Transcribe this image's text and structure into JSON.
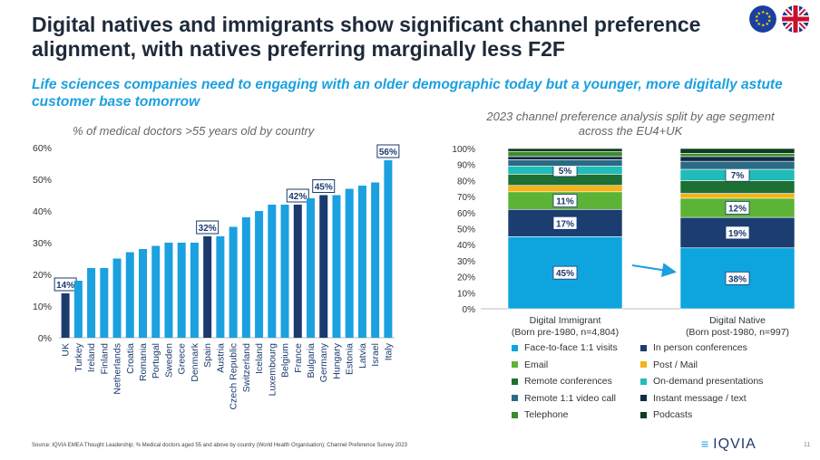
{
  "title": "Digital natives and immigrants show significant channel preference alignment, with natives preferring marginally less F2F",
  "subtitle": "Life sciences companies need to engaging with an older demographic today but a younger, more digitally astute customer base tomorrow",
  "flags": [
    "eu-flag-icon",
    "uk-flag-icon"
  ],
  "colors": {
    "light": "#1ba0e0",
    "dark": "#1b3a6e",
    "title": "#1e2a3a"
  },
  "footer": "Source: IQVIA EMEA Thought Leadership; % Medical doctors aged 55 and above by country (World Health Organisation); Channel Preference Survey 2023",
  "logo": "IQVIA",
  "page_number": "11",
  "chart_data": [
    {
      "type": "bar",
      "title": "% of medical doctors >55 years old by country",
      "categories": [
        "UK",
        "Turkey",
        "Ireland",
        "Finland",
        "Netherlands",
        "Croatia",
        "Romania",
        "Portugal",
        "Sweden",
        "Greece",
        "Denmark",
        "Spain",
        "Austria",
        "Czech Republic",
        "Switzerland",
        "Iceland",
        "Luxembourg",
        "Belgium",
        "France",
        "Bulgaria",
        "Germany",
        "Hungary",
        "Estonia",
        "Latvia",
        "Israel",
        "Italy"
      ],
      "values": [
        14,
        18,
        22,
        22,
        25,
        27,
        28,
        29,
        30,
        30,
        30,
        32,
        32,
        35,
        38,
        40,
        42,
        42,
        42,
        44,
        45,
        45,
        47,
        48,
        49,
        56
      ],
      "highlighted": [
        "UK",
        "Spain",
        "France",
        "Germany"
      ],
      "data_labels": {
        "UK": "14%",
        "Spain": "32%",
        "France": "42%",
        "Germany": "45%",
        "Italy": "56%"
      },
      "yticks": [
        "0%",
        "10%",
        "20%",
        "30%",
        "40%",
        "50%",
        "60%"
      ],
      "ylim": [
        0,
        60
      ],
      "grid": false
    },
    {
      "type": "bar",
      "stacked": true,
      "title": "2023 channel preference analysis split by age segment across the EU4+UK",
      "categories": [
        "Digital Immigrant\n(Born pre-1980, n=4,804)",
        "Digital Native\n(Born post-1980, n=997)"
      ],
      "category_lines": [
        [
          "Digital Immigrant",
          "(Born pre-1980, n=4,804)"
        ],
        [
          "Digital Native",
          "(Born post-1980, n=997)"
        ]
      ],
      "yticks": [
        "0%",
        "10%",
        "20%",
        "30%",
        "40%",
        "50%",
        "60%",
        "70%",
        "80%",
        "90%",
        "100%"
      ],
      "ylim": [
        0,
        100
      ],
      "legend_placement": "bottom",
      "series": [
        {
          "name": "Face-to-face 1:1 visits",
          "color": "#0ea5df",
          "values": [
            45,
            38
          ],
          "labels": [
            "45%",
            "38%"
          ]
        },
        {
          "name": "In person conferences",
          "color": "#1b3d70",
          "values": [
            17,
            19
          ],
          "labels": [
            "17%",
            "19%"
          ]
        },
        {
          "name": "Email",
          "color": "#5cb335",
          "values": [
            11,
            12
          ],
          "labels": [
            "11%",
            "12%"
          ]
        },
        {
          "name": "Post / Mail",
          "color": "#f2b419",
          "values": [
            4,
            3
          ],
          "labels": [
            "",
            ""
          ]
        },
        {
          "name": "Remote conferences",
          "color": "#1d6f33",
          "values": [
            7,
            8
          ],
          "labels": [
            "",
            ""
          ]
        },
        {
          "name": "On-demand presentations",
          "color": "#1fbcb9",
          "values": [
            5,
            7
          ],
          "labels": [
            "5%",
            "7%"
          ]
        },
        {
          "name": "Remote 1:1 video call",
          "color": "#2b6a84",
          "values": [
            4,
            5
          ],
          "labels": [
            "",
            ""
          ]
        },
        {
          "name": "Instant message / text",
          "color": "#132a44",
          "values": [
            2,
            3
          ],
          "labels": [
            "",
            ""
          ]
        },
        {
          "name": "Telephone",
          "color": "#3c8a2e",
          "values": [
            3,
            2
          ],
          "labels": [
            "",
            ""
          ]
        },
        {
          "name": "Podcasts",
          "color": "#0f3d1f",
          "values": [
            2,
            3
          ],
          "labels": [
            "",
            ""
          ]
        }
      ]
    }
  ]
}
